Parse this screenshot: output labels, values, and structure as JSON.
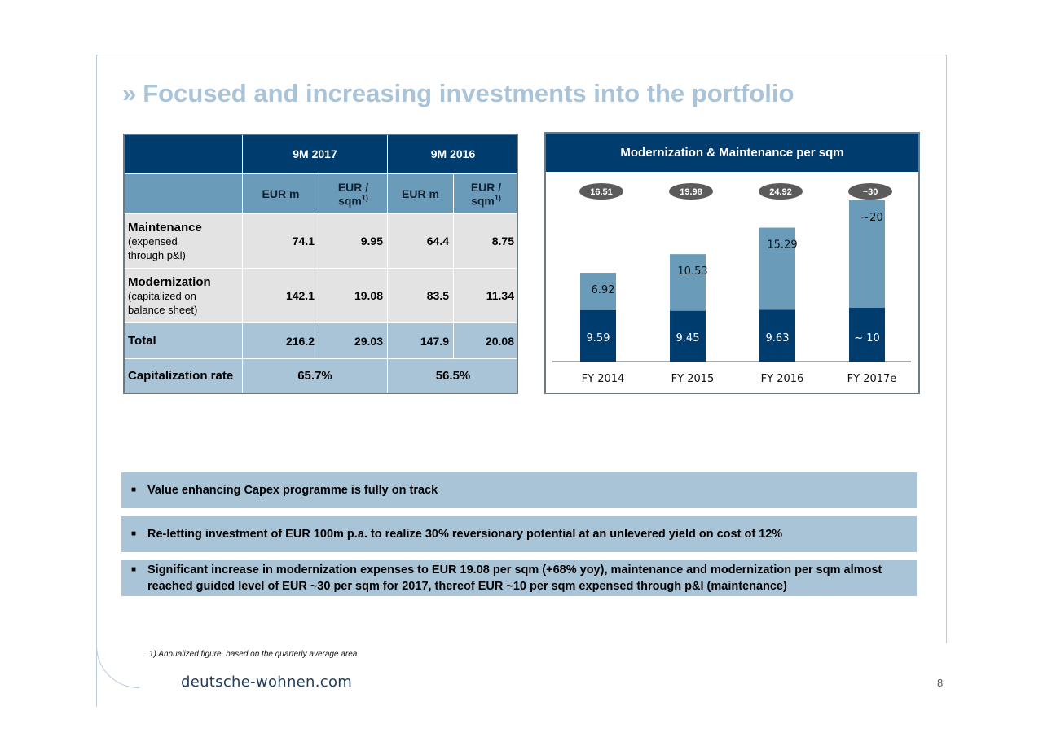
{
  "title": {
    "chevron": "»",
    "text": "Focused and increasing investments into the portfolio"
  },
  "table": {
    "periods": [
      "9M 2017",
      "9M 2016"
    ],
    "subheaders": {
      "eur_m": "EUR m",
      "eur_sqm": "EUR /",
      "eur_sqm_unit": "sqm",
      "footnote_mark": "1)"
    },
    "rows": [
      {
        "label": "Maintenance",
        "sublabel": "(expensed through p&l)",
        "values": [
          "74.1",
          "9.95",
          "64.4",
          "8.75"
        ]
      },
      {
        "label": "Modernization",
        "sublabel": "(capitalized on balance sheet)",
        "values": [
          "142.1",
          "19.08",
          "83.5",
          "11.34"
        ]
      },
      {
        "label": "Total",
        "sublabel": "",
        "values": [
          "216.2",
          "29.03",
          "147.9",
          "20.08"
        ]
      }
    ],
    "cap_rate": {
      "label": "Capitalization rate",
      "values": [
        "65.7%",
        "56.5%"
      ]
    }
  },
  "chart_data": {
    "type": "bar",
    "title": "Modernization & Maintenance per sqm",
    "categories": [
      "FY 2014",
      "FY 2015",
      "FY 2016",
      "FY 2017e"
    ],
    "series": [
      {
        "values": [
          9.59,
          9.45,
          9.63,
          10
        ],
        "labels": [
          "9.59",
          "9.45",
          "9.63",
          "~ 10"
        ],
        "color": "#003c6e"
      },
      {
        "values": [
          6.92,
          10.53,
          15.29,
          20
        ],
        "labels": [
          "6.92",
          "10.53",
          "15.29",
          "~20"
        ],
        "color": "#6a9cba"
      }
    ],
    "totals": [
      "16.51",
      "19.98",
      "24.92",
      "~30"
    ],
    "stacked": true,
    "ylim": [
      0,
      30
    ]
  },
  "bullets": [
    "Value enhancing Capex programme is fully on track",
    "Re-letting investment of EUR 100m p.a. to realize 30% reversionary potential at an unlevered yield on cost of 12%",
    "Significant increase in modernization expenses to EUR 19.08 per sqm (+68% yoy), maintenance and modernization per sqm almost reached guided level of EUR ~30 per sqm for 2017, thereof EUR ~10 per sqm expensed through p&l (maintenance)"
  ],
  "bullet_marker": "■",
  "footnote": "1) Annualized figure, based on the quarterly average area",
  "brand": "deutsche-wohnen.com",
  "page_number": "8"
}
